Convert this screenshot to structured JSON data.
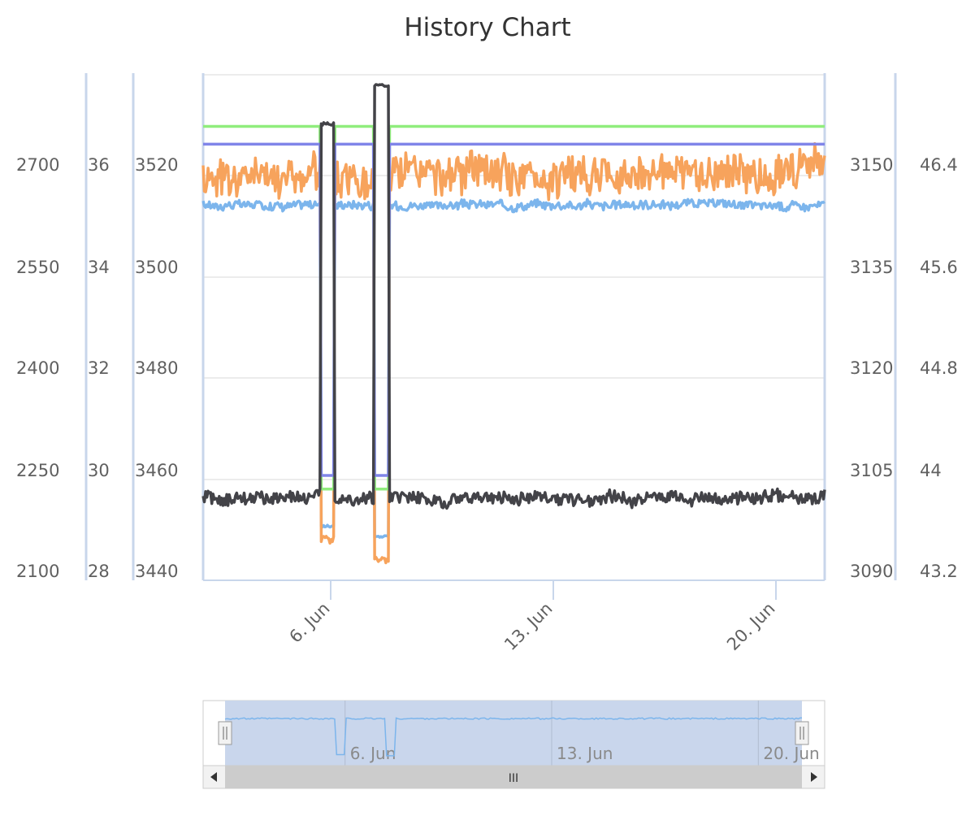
{
  "chart_data": {
    "type": "line",
    "title": "History Chart",
    "x_ticks": [
      "6. Jun",
      "13. Jun",
      "20. Jun"
    ],
    "x_range": [
      "2 Jun",
      "22 Jun"
    ],
    "y_axes": [
      {
        "side": "left",
        "ticks": [
          "2100",
          "2250",
          "2400",
          "2550",
          "2700"
        ],
        "range": [
          2100,
          2850
        ]
      },
      {
        "side": "left",
        "ticks": [
          "28",
          "30",
          "32",
          "34",
          "36"
        ],
        "range": [
          28,
          38
        ]
      },
      {
        "side": "left",
        "ticks": [
          "3440",
          "3460",
          "3480",
          "3500",
          "3520"
        ],
        "range": [
          3440,
          3540
        ]
      },
      {
        "side": "right",
        "ticks": [
          "3090",
          "3105",
          "3120",
          "3135",
          "3150"
        ],
        "range": [
          3090,
          3165
        ]
      },
      {
        "side": "right",
        "ticks": [
          "43.2",
          "44",
          "44.8",
          "45.6",
          "46.4"
        ],
        "range": [
          43.2,
          47.2
        ]
      }
    ],
    "series": [
      {
        "color": "#7cb5ec",
        "axis": 0,
        "base": 2655,
        "noise": 0.04,
        "drops": [
          [
            5.9,
            2180
          ],
          [
            7.6,
            2165
          ]
        ]
      },
      {
        "color": "#f7a35c",
        "axis": 1,
        "base": 36.0,
        "noise": 0.18,
        "drops": [
          [
            5.9,
            28.8
          ],
          [
            7.6,
            28.4
          ]
        ]
      },
      {
        "color": "#90ed7d",
        "axis": 2,
        "base": 3529.5,
        "noise": 0.0,
        "drops": [
          [
            5.9,
            3458.0
          ],
          [
            7.6,
            3458.0
          ]
        ]
      },
      {
        "color": "#8085e9",
        "axis": 3,
        "base": 3154.5,
        "noise": 0.0,
        "drops": [
          [
            5.9,
            3105.5
          ],
          [
            7.6,
            3105.5
          ]
        ]
      },
      {
        "color": "#434348",
        "axis": 4,
        "base": 43.85,
        "noise": 0.06,
        "spikes": [
          [
            5.9,
            46.8
          ],
          [
            7.6,
            47.1
          ]
        ]
      }
    ],
    "legend": "none",
    "grid": true
  },
  "navigator": {
    "ticks": [
      "6. Jun",
      "13. Jun",
      "20. Jun"
    ],
    "scrollbar_handle": "III"
  },
  "colors": {
    "axis_line": "#c8d6eb",
    "grid": "#e6e6e6",
    "navigator_mask": "#c9d6ec"
  }
}
